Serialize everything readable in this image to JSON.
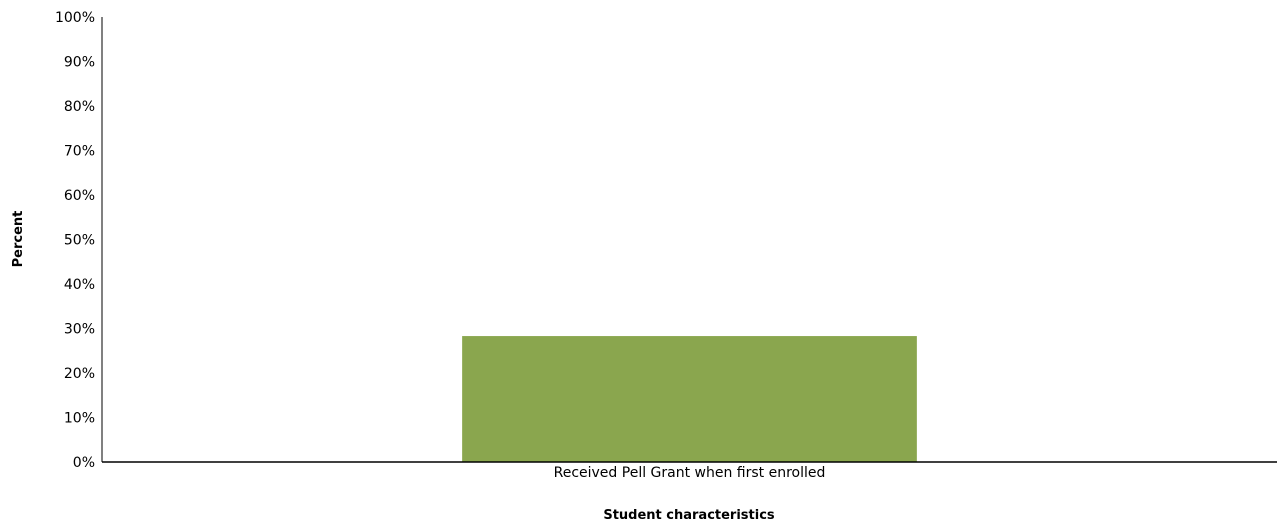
{
  "chart_data": {
    "type": "bar",
    "title": "",
    "categories": [
      "Received Pell Grant when first enrolled"
    ],
    "series": [
      {
        "values": [
          28.3
        ]
      }
    ],
    "xlabel": "Student characteristics",
    "ylabel": "Percent",
    "ylim": [
      0,
      100
    ],
    "yticks": [
      "0%",
      "10%",
      "20%",
      "30%",
      "40%",
      "50%",
      "60%",
      "70%",
      "80%",
      "90%",
      "100%"
    ],
    "grid": false,
    "legend": "none",
    "colors": {
      "bar": "#8aa64e",
      "axis": "#000000"
    }
  }
}
